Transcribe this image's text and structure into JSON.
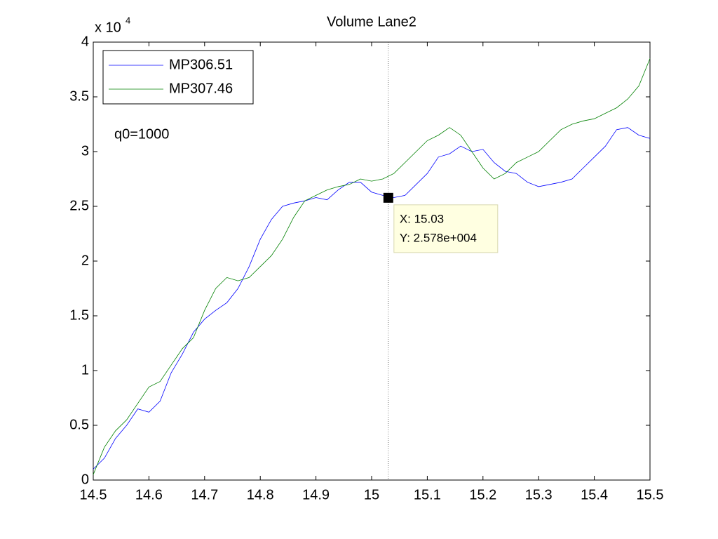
{
  "chart_data": {
    "type": "line",
    "title": "Volume Lane2",
    "y_exponent": {
      "base": "x 10",
      "power": "4"
    },
    "annotation": "q0=1000",
    "datatip": {
      "x": 15.03,
      "y": 2.578,
      "x_label": "X: 15.03",
      "y_label": "Y: 2.578e+004"
    },
    "x": [
      14.5,
      14.52,
      14.54,
      14.56,
      14.58,
      14.6,
      14.62,
      14.64,
      14.66,
      14.68,
      14.7,
      14.72,
      14.74,
      14.76,
      14.78,
      14.8,
      14.82,
      14.84,
      14.86,
      14.88,
      14.9,
      14.92,
      14.94,
      14.96,
      14.98,
      15.0,
      15.02,
      15.04,
      15.06,
      15.08,
      15.1,
      15.12,
      15.14,
      15.16,
      15.18,
      15.2,
      15.22,
      15.24,
      15.26,
      15.28,
      15.3,
      15.32,
      15.34,
      15.36,
      15.38,
      15.4,
      15.42,
      15.44,
      15.46,
      15.48,
      15.5
    ],
    "series": [
      {
        "name": "MP306.51",
        "color": "#0000ff",
        "values": [
          0.1,
          0.2,
          0.38,
          0.5,
          0.65,
          0.62,
          0.72,
          0.98,
          1.15,
          1.35,
          1.47,
          1.55,
          1.62,
          1.75,
          1.95,
          2.2,
          2.38,
          2.5,
          2.53,
          2.55,
          2.58,
          2.56,
          2.65,
          2.72,
          2.72,
          2.63,
          2.6,
          2.58,
          2.6,
          2.7,
          2.8,
          2.95,
          2.98,
          3.05,
          3.0,
          3.02,
          2.9,
          2.82,
          2.8,
          2.72,
          2.68,
          2.7,
          2.72,
          2.75,
          2.85,
          2.95,
          3.05,
          3.2,
          3.22,
          3.15,
          3.12
        ]
      },
      {
        "name": "MP307.46",
        "color": "#008000",
        "values": [
          0.05,
          0.3,
          0.45,
          0.55,
          0.7,
          0.85,
          0.9,
          1.05,
          1.2,
          1.3,
          1.55,
          1.75,
          1.85,
          1.82,
          1.85,
          1.95,
          2.05,
          2.2,
          2.4,
          2.55,
          2.6,
          2.65,
          2.68,
          2.7,
          2.75,
          2.73,
          2.75,
          2.8,
          2.9,
          3.0,
          3.1,
          3.15,
          3.22,
          3.15,
          3.0,
          2.85,
          2.75,
          2.8,
          2.9,
          2.95,
          3.0,
          3.1,
          3.2,
          3.25,
          3.28,
          3.3,
          3.35,
          3.4,
          3.48,
          3.6,
          3.85
        ]
      }
    ],
    "xlim": [
      14.5,
      15.5
    ],
    "xticks": [
      14.5,
      14.6,
      14.7,
      14.8,
      14.9,
      15,
      15.1,
      15.2,
      15.3,
      15.4,
      15.5
    ],
    "ylim": [
      0,
      4
    ],
    "yticks": [
      0,
      0.5,
      1,
      1.5,
      2,
      2.5,
      3,
      3.5,
      4
    ],
    "legend": "upper-left"
  }
}
